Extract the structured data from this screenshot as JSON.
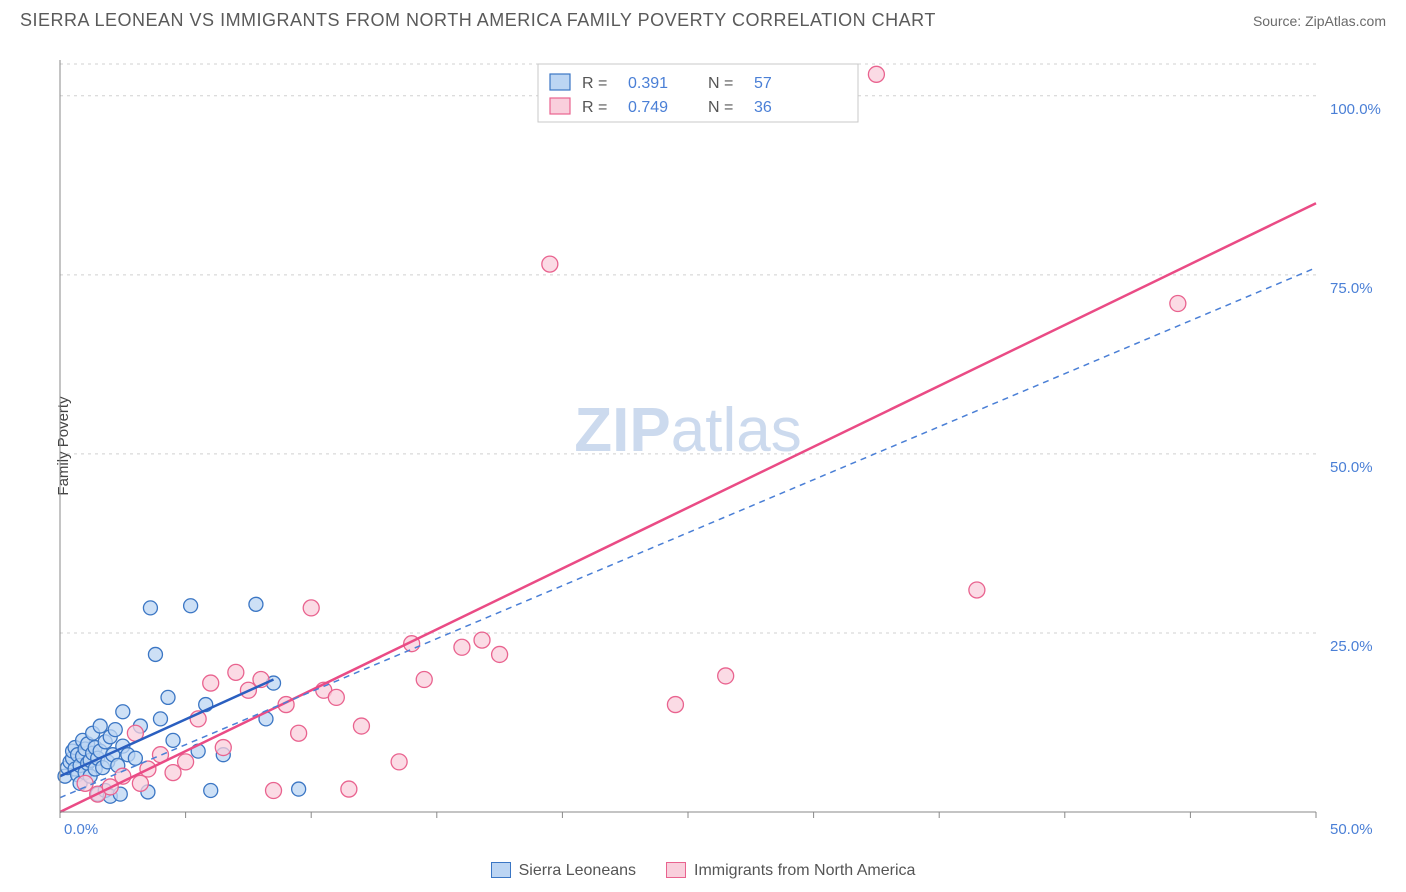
{
  "title": "SIERRA LEONEAN VS IMMIGRANTS FROM NORTH AMERICA FAMILY POVERTY CORRELATION CHART",
  "source": "Source: ZipAtlas.com",
  "ylabel": "Family Poverty",
  "watermark_bold": "ZIP",
  "watermark_rest": "atlas",
  "axis": {
    "xlim": [
      0,
      50
    ],
    "ylim": [
      0,
      105
    ],
    "y_ticks": [
      25,
      50,
      75,
      100
    ],
    "y_tick_labels": [
      "25.0%",
      "50.0%",
      "75.0%",
      "100.0%"
    ],
    "x_tick_labels": {
      "min": "0.0%",
      "max": "50.0%"
    },
    "x_minor_step": 5,
    "grid_color": "#d0d0d0",
    "axis_color": "#888888",
    "tick_label_color": "#4a7fd6"
  },
  "top_legend": {
    "entries": [
      {
        "swatch_fill": "#bcd5f3",
        "swatch_stroke": "#3b76c4",
        "r_label": "R =",
        "r_val": "0.391",
        "n_label": "N =",
        "n_val": "57"
      },
      {
        "swatch_fill": "#f9cfdc",
        "swatch_stroke": "#e9638f",
        "r_label": "R =",
        "r_val": "0.749",
        "n_label": "N =",
        "n_val": "36"
      }
    ]
  },
  "bottom_legend": {
    "items": [
      {
        "swatch_fill": "#bcd5f3",
        "swatch_stroke": "#3b76c4",
        "label": "Sierra Leoneans"
      },
      {
        "swatch_fill": "#f9cfdc",
        "swatch_stroke": "#e9638f",
        "label": "Immigrants from North America"
      }
    ]
  },
  "series": [
    {
      "name": "sierra_leoneans",
      "point_fill": "#bcd5f3",
      "point_stroke": "#3b76c4",
      "point_radius": 7,
      "line_color": "#2a5fc0",
      "line_width": 2.5,
      "line_dash": "",
      "line_from": [
        0,
        5.0
      ],
      "line_to": [
        8.5,
        18.5
      ],
      "points": [
        [
          0.2,
          5
        ],
        [
          0.3,
          6.2
        ],
        [
          0.4,
          7
        ],
        [
          0.5,
          7.5
        ],
        [
          0.5,
          8.5
        ],
        [
          0.6,
          6
        ],
        [
          0.6,
          9
        ],
        [
          0.7,
          5.2
        ],
        [
          0.7,
          8
        ],
        [
          0.8,
          6.5
        ],
        [
          0.8,
          4
        ],
        [
          0.9,
          7.8
        ],
        [
          0.9,
          10
        ],
        [
          1.0,
          5.5
        ],
        [
          1.0,
          8.8
        ],
        [
          1.1,
          6.8
        ],
        [
          1.1,
          9.5
        ],
        [
          1.2,
          7.2
        ],
        [
          1.2,
          5
        ],
        [
          1.3,
          8.2
        ],
        [
          1.3,
          11
        ],
        [
          1.4,
          6
        ],
        [
          1.4,
          9
        ],
        [
          1.5,
          7.5
        ],
        [
          1.5,
          2.5
        ],
        [
          1.6,
          8.5
        ],
        [
          1.6,
          12
        ],
        [
          1.7,
          6.2
        ],
        [
          1.8,
          9.8
        ],
        [
          1.8,
          3
        ],
        [
          1.9,
          7
        ],
        [
          2.0,
          10.5
        ],
        [
          2.0,
          2.2
        ],
        [
          2.1,
          8
        ],
        [
          2.2,
          11.5
        ],
        [
          2.3,
          6.5
        ],
        [
          2.4,
          2.5
        ],
        [
          2.5,
          9.2
        ],
        [
          2.5,
          14
        ],
        [
          2.7,
          8
        ],
        [
          3.0,
          7.5
        ],
        [
          3.2,
          12
        ],
        [
          3.5,
          2.8
        ],
        [
          3.6,
          28.5
        ],
        [
          3.8,
          22
        ],
        [
          4.0,
          13
        ],
        [
          4.3,
          16
        ],
        [
          4.5,
          10
        ],
        [
          5.2,
          28.8
        ],
        [
          5.5,
          8.5
        ],
        [
          5.8,
          15
        ],
        [
          6.0,
          3
        ],
        [
          6.5,
          8
        ],
        [
          7.8,
          29
        ],
        [
          8.2,
          13
        ],
        [
          8.5,
          18
        ],
        [
          9.5,
          3.2
        ]
      ]
    },
    {
      "name": "immigrants_na",
      "point_fill": "#f9cfdc",
      "point_stroke": "#e9638f",
      "point_radius": 8,
      "line_color": "#ea4b85",
      "line_width": 2.5,
      "line_dash": "",
      "line_from": [
        0,
        0
      ],
      "line_to": [
        50,
        85
      ],
      "points": [
        [
          1.0,
          4
        ],
        [
          1.5,
          2.5
        ],
        [
          2.0,
          3.5
        ],
        [
          2.5,
          5
        ],
        [
          3.0,
          11
        ],
        [
          3.2,
          4
        ],
        [
          3.5,
          6
        ],
        [
          4.0,
          8
        ],
        [
          4.5,
          5.5
        ],
        [
          5.0,
          7
        ],
        [
          5.5,
          13
        ],
        [
          6.0,
          18
        ],
        [
          6.5,
          9
        ],
        [
          7.0,
          19.5
        ],
        [
          7.5,
          17
        ],
        [
          8.0,
          18.5
        ],
        [
          8.5,
          3
        ],
        [
          9.0,
          15
        ],
        [
          9.5,
          11
        ],
        [
          10.0,
          28.5
        ],
        [
          10.5,
          17
        ],
        [
          11.0,
          16
        ],
        [
          11.5,
          3.2
        ],
        [
          12.0,
          12
        ],
        [
          13.5,
          7
        ],
        [
          14.0,
          23.5
        ],
        [
          14.5,
          18.5
        ],
        [
          16.0,
          23
        ],
        [
          16.8,
          24
        ],
        [
          17.5,
          22
        ],
        [
          19.5,
          76.5
        ],
        [
          24.5,
          15
        ],
        [
          26.5,
          19
        ],
        [
          32.5,
          103
        ],
        [
          36.5,
          31
        ],
        [
          44.5,
          71
        ]
      ]
    },
    {
      "name": "dashed_trend",
      "points": [],
      "line_color": "#4a7fd6",
      "line_width": 1.5,
      "line_dash": "6 5",
      "line_from": [
        0,
        2
      ],
      "line_to": [
        50,
        76
      ]
    }
  ]
}
